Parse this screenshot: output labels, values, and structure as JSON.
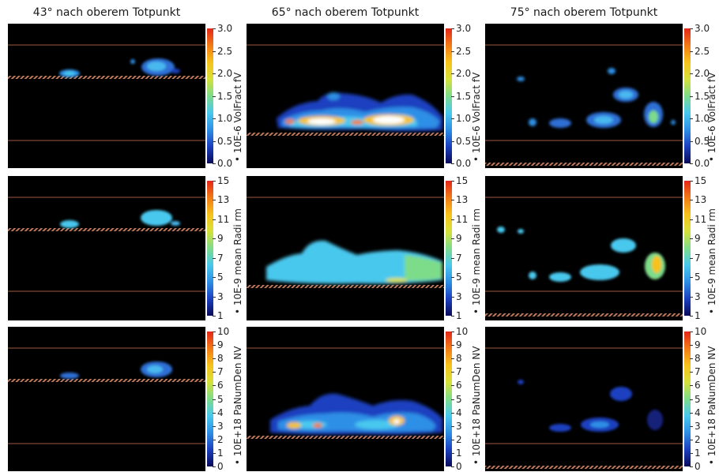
{
  "columns": [
    {
      "title": "43° nach oberem Totpunkt"
    },
    {
      "title": "65° nach oberem Totpunkt"
    },
    {
      "title": "75° nach oberem Totpunkt"
    }
  ],
  "rows": [
    {
      "quantity": "VolFract fV",
      "colorbar_label": "• 10E-6 VolFract fV",
      "ticks": [
        "3.0",
        "2.5",
        "2.0",
        "1.5",
        "1.0",
        "0.5",
        "0.0"
      ],
      "range": [
        0.0,
        3.0
      ]
    },
    {
      "quantity": "mean Radi rm",
      "colorbar_label": "• 10E-9 mean Radi rm",
      "ticks": [
        "15",
        "13",
        "11",
        "9",
        "7",
        "5",
        "3",
        "1"
      ],
      "range": [
        1,
        15
      ]
    },
    {
      "quantity": "PaNumDen NV",
      "colorbar_label": "• 10E+18 PaNumDen NV",
      "ticks": [
        "10",
        "9",
        "8",
        "7",
        "6",
        "5",
        "4",
        "3",
        "2",
        "1",
        "0"
      ],
      "range": [
        0,
        10
      ]
    }
  ],
  "colormap": [
    "#0a0a5a",
    "#1b3fbf",
    "#2e8fe6",
    "#49c8ee",
    "#7ddc8a",
    "#d6e03a",
    "#f7c21a",
    "#f27a16",
    "#e3261a"
  ]
}
